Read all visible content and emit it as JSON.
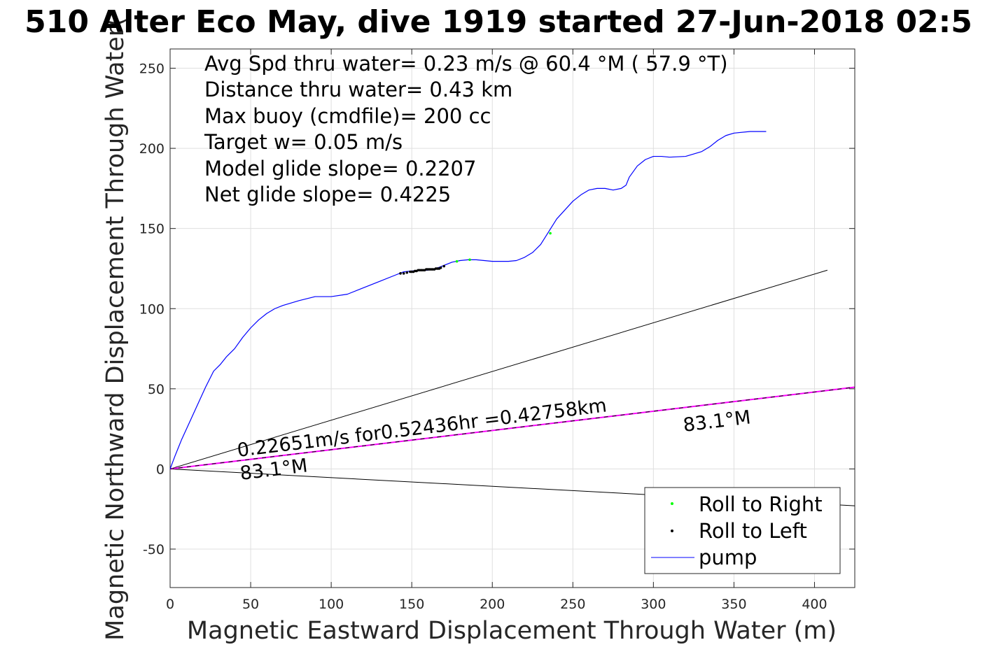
{
  "chart_data": {
    "type": "line",
    "title": "510 Alter Eco May, dive 1919 started 27-Jun-2018 02:5",
    "xlabel": "Magnetic Eastward Displacement Through Water (m)",
    "ylabel": "Magnetic Northward Displacement Through Water(",
    "xlim": [
      0,
      425
    ],
    "ylim": [
      -74,
      262
    ],
    "xticks": [
      0,
      50,
      100,
      150,
      200,
      250,
      300,
      350,
      400
    ],
    "yticks": [
      -50,
      0,
      50,
      100,
      150,
      200,
      250
    ],
    "grid": true,
    "stats_lines": [
      "Avg Spd thru water=  0.23 m/s @  60.4 °M ( 57.9 °T)",
      "Distance thru water=  0.43 km",
      "Max buoy (cmdfile)= 200 cc",
      "Target w= 0.05 m/s",
      "Model glide slope= 0.2207",
      "Net glide slope= 0.4225"
    ],
    "annotations": {
      "speed_text": "0.22651m/s for0.52436hr =0.42758km",
      "heading_start": "83.1°M",
      "heading_end": "83.1°M"
    },
    "lines": {
      "upper_ref": {
        "x": [
          0,
          408
        ],
        "y": [
          0,
          124
        ]
      },
      "lower_ref": {
        "x": [
          0,
          425
        ],
        "y": [
          0,
          -23
        ]
      },
      "heading": {
        "x": [
          0,
          425
        ],
        "y": [
          0,
          51
        ]
      }
    },
    "series": [
      {
        "name": "pump",
        "color": "#0000ff",
        "x": [
          0,
          3,
          7,
          12,
          17,
          22,
          27,
          31,
          35,
          40,
          45,
          50,
          55,
          60,
          65,
          70,
          80,
          90,
          100,
          110,
          120,
          130,
          140,
          145,
          150,
          160,
          165,
          170,
          175,
          180,
          185,
          190,
          200,
          210,
          215,
          220,
          225,
          230,
          240,
          250,
          255,
          260,
          265,
          270,
          275,
          280,
          283,
          285,
          290,
          295,
          300,
          305,
          310,
          320,
          330,
          335,
          340,
          345,
          350,
          360,
          370
        ],
        "y": [
          0,
          8,
          18,
          29,
          40,
          51,
          61,
          65,
          70,
          75,
          82,
          88,
          93,
          97,
          100,
          102,
          105,
          107.5,
          107.5,
          109,
          113,
          117,
          121,
          123,
          123.5,
          124,
          125,
          127,
          129,
          130,
          130.5,
          130.5,
          129.5,
          129.5,
          130,
          132,
          135,
          140,
          156,
          167,
          171,
          174,
          175,
          175,
          174,
          175,
          177,
          182,
          189,
          193,
          195,
          195,
          194.5,
          195,
          198,
          201,
          205,
          208,
          209.5,
          210.5,
          210.5
        ]
      },
      {
        "name": "Roll to Left",
        "color": "#000000",
        "marker": "dot",
        "x": [
          143,
          145,
          147,
          149,
          150,
          151,
          152,
          153,
          154,
          155,
          156,
          157,
          158,
          159,
          160,
          161,
          162,
          163,
          164,
          165,
          166,
          167,
          168,
          170
        ],
        "y": [
          122,
          122,
          122.5,
          123,
          123,
          123,
          123.5,
          123.5,
          124,
          124,
          124,
          124,
          124,
          124.5,
          124.5,
          124.5,
          124.5,
          124.5,
          124.5,
          125,
          125,
          125,
          125.5,
          126.5
        ]
      },
      {
        "name": "Roll to Right",
        "color": "#00ff00",
        "marker": "dot",
        "x": [
          178,
          186,
          236
        ],
        "y": [
          129.5,
          130.5,
          147
        ]
      }
    ],
    "legend": {
      "position": "bottom-right",
      "entries": [
        "Roll to Right",
        "Roll to Left",
        "pump"
      ]
    }
  }
}
